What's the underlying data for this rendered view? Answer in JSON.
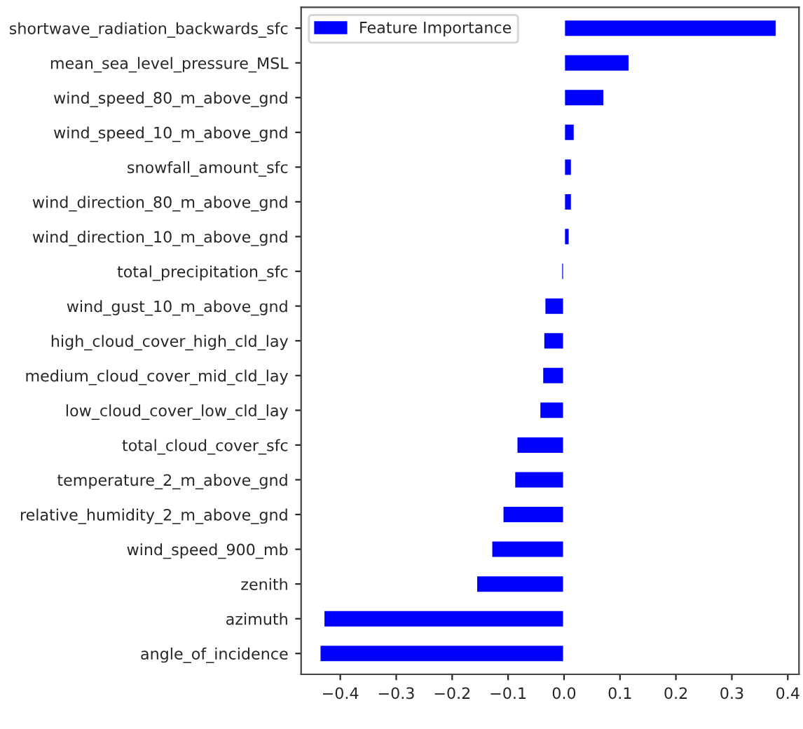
{
  "chart_data": {
    "type": "bar",
    "orientation": "horizontal",
    "categories": [
      "shortwave_radiation_backwards_sfc",
      "mean_sea_level_pressure_MSL",
      "wind_speed_80_m_above_gnd",
      "wind_speed_10_m_above_gnd",
      "snowfall_amount_sfc",
      "wind_direction_80_m_above_gnd",
      "wind_direction_10_m_above_gnd",
      "total_precipitation_sfc",
      "wind_gust_10_m_above_gnd",
      "high_cloud_cover_high_cld_lay",
      "medium_cloud_cover_mid_cld_lay",
      "low_cloud_cover_low_cld_lay",
      "total_cloud_cover_sfc",
      "temperature_2_m_above_gnd",
      "relative_humidity_2_m_above_gnd",
      "wind_speed_900_mb",
      "zenith",
      "azimuth",
      "angle_of_incidence"
    ],
    "series": [
      {
        "name": "Feature Importance",
        "color": "#0000ff",
        "values": [
          0.38,
          0.117,
          0.072,
          0.019,
          0.014,
          0.014,
          0.01,
          -0.005,
          -0.035,
          -0.037,
          -0.039,
          -0.044,
          -0.085,
          -0.089,
          -0.11,
          -0.13,
          -0.157,
          -0.43,
          -0.437
        ]
      }
    ],
    "xlim": [
      -0.47,
      0.42
    ],
    "xticks": [
      {
        "value": -0.4,
        "label": "−0.4"
      },
      {
        "value": -0.3,
        "label": "−0.3"
      },
      {
        "value": -0.2,
        "label": "−0.2"
      },
      {
        "value": -0.1,
        "label": "−0.1"
      },
      {
        "value": 0,
        "label": "0.0"
      },
      {
        "value": 0.1,
        "label": "0.1"
      },
      {
        "value": 0.2,
        "label": "0.2"
      },
      {
        "value": 0.3,
        "label": "0.3"
      },
      {
        "value": 0.4,
        "label": "0.4"
      }
    ],
    "legend": "top left",
    "grid": false
  }
}
